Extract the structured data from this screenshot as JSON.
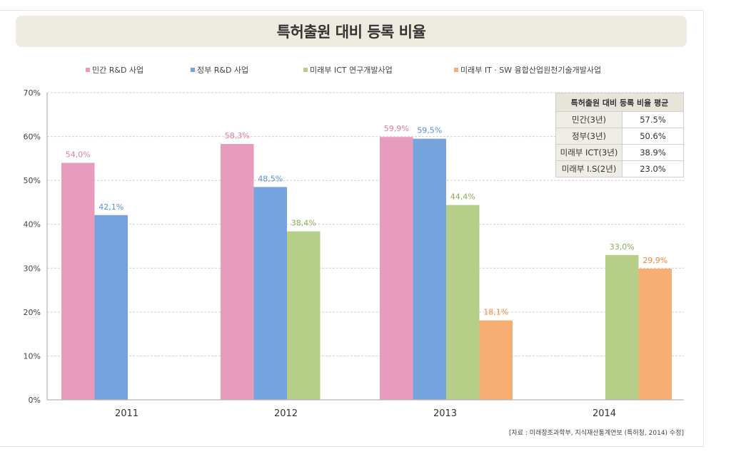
{
  "chart_data": {
    "type": "bar",
    "title": "특허출원 대비 등록 비율",
    "xlabel": "",
    "ylabel": "",
    "ylim": [
      0,
      70
    ],
    "yticks": [
      "0%",
      "10%",
      "20%",
      "30%",
      "40%",
      "50%",
      "60%",
      "70%"
    ],
    "ytick_values": [
      0,
      10,
      20,
      30,
      40,
      50,
      60,
      70
    ],
    "grid": true,
    "legend_position": "top",
    "categories": [
      "2011",
      "2012",
      "2013",
      "2014"
    ],
    "series": [
      {
        "name": "민간 R&D 사업",
        "color": "#e79bbd",
        "label_color": "#e07aa6",
        "values": [
          54.0,
          58.3,
          59.9,
          null
        ],
        "labels": [
          "54,0%",
          "58,3%",
          "59,9%",
          null
        ]
      },
      {
        "name": "정부 R&D 사업",
        "color": "#74a3dd",
        "label_color": "#5b8fd6",
        "values": [
          42.1,
          48.5,
          59.5,
          null
        ],
        "labels": [
          "42,1%",
          "48,5%",
          "59,5%",
          null
        ]
      },
      {
        "name": "미래부 ICT 연구개발사업",
        "color": "#b5cf88",
        "label_color": "#8eab5c",
        "values": [
          null,
          38.4,
          44.4,
          33.0
        ],
        "labels": [
          null,
          "38,4%",
          "44,4%",
          "33,0%"
        ]
      },
      {
        "name": "미래부 IT · SW 융합산업원천기술개발사업",
        "color": "#f8ad72",
        "label_color": "#ee8a3c",
        "values": [
          null,
          null,
          18.1,
          29.9
        ],
        "labels": [
          null,
          null,
          "18,1%",
          "29,9%"
        ]
      }
    ],
    "summary_table": {
      "header": "특허출원 대비 등록 비율 평균",
      "rows": [
        {
          "label": "민간(3년)",
          "value": "57.5%"
        },
        {
          "label": "정부(3년)",
          "value": "50.6%"
        },
        {
          "label": "미래부 ICT(3년)",
          "value": "38.9%"
        },
        {
          "label": "미래부 I.S(2년)",
          "value": "23.0%"
        }
      ]
    },
    "source": "[자료 : 미래창조과학부, 지식재산통계연보 (특허청, 2014) 수정]"
  }
}
